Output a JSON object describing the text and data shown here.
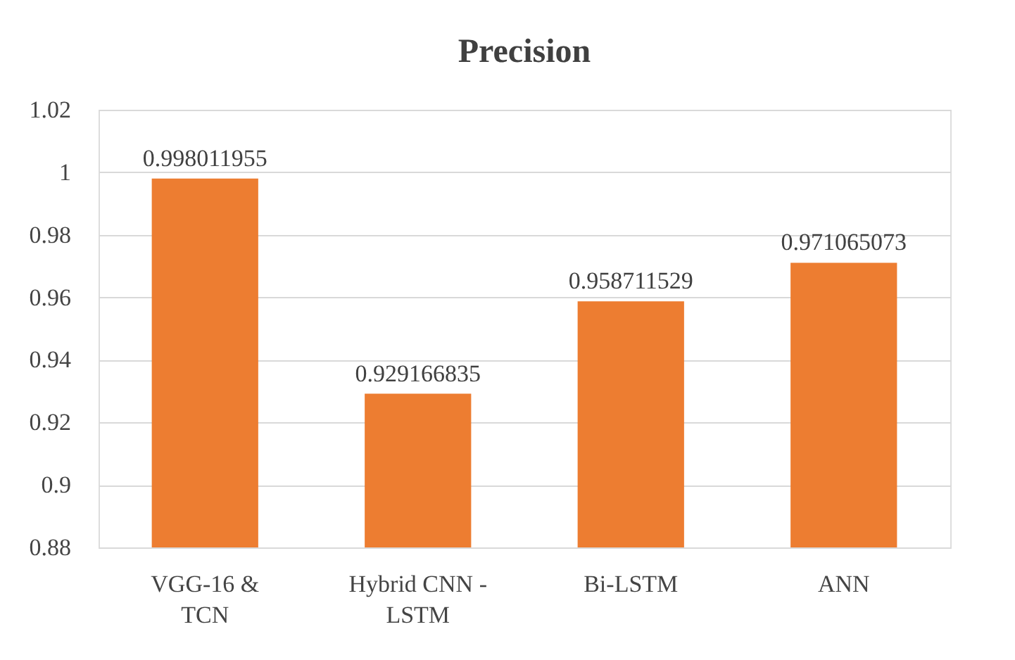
{
  "chart_data": {
    "type": "bar",
    "title": "Precision",
    "categories": [
      "VGG-16 & TCN",
      "Hybrid CNN - LSTM",
      "Bi-LSTM",
      "ANN"
    ],
    "values": [
      0.998011955,
      0.929166835,
      0.958711529,
      0.971065073
    ],
    "color": "#ed7d31",
    "ylim": [
      0.88,
      1.02
    ],
    "yticks": [
      0.88,
      0.9,
      0.92,
      0.94,
      0.96,
      0.98,
      1,
      1.02
    ],
    "grid": "y",
    "data_labels": true
  }
}
